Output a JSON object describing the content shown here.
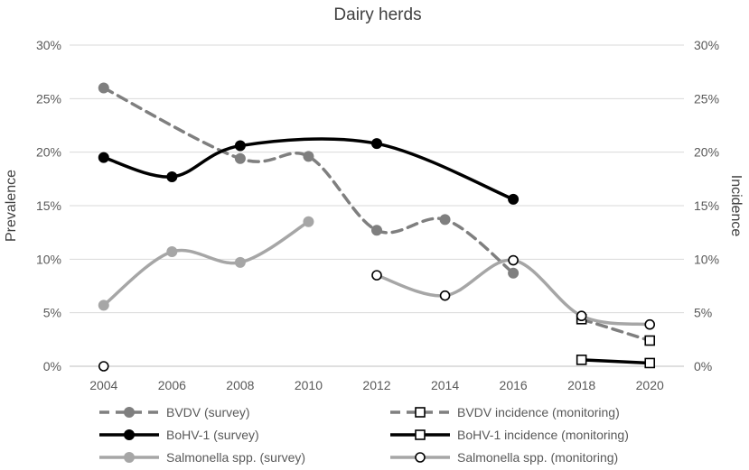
{
  "chart_data": {
    "type": "line",
    "title": "Dairy herds",
    "ylabel_left": "Prevalence",
    "ylabel_right": "Incidence",
    "x_ticks": [
      "2004",
      "2006",
      "2008",
      "2010",
      "2012",
      "2014",
      "2016",
      "2018",
      "2020"
    ],
    "y_ticks": [
      "0%",
      "5%",
      "10%",
      "15%",
      "20%",
      "25%",
      "30%"
    ],
    "ylim": [
      0,
      30
    ],
    "xlim": [
      2003,
      2021
    ],
    "grid": true,
    "legend_position": "bottom",
    "series": [
      {
        "name": "BVDV (survey)",
        "axis": "left",
        "color": "#7f7f7f",
        "dashed": true,
        "marker": "filled-circle",
        "points": [
          [
            2004,
            26.0
          ],
          [
            2008,
            19.4
          ],
          [
            2010,
            19.6
          ],
          [
            2012,
            12.7
          ],
          [
            2014,
            13.7
          ],
          [
            2016,
            8.7
          ]
        ]
      },
      {
        "name": "BVDV incidence (monitoring)",
        "axis": "right",
        "color": "#7f7f7f",
        "dashed": true,
        "marker": "open-square",
        "points": [
          [
            2018,
            4.4
          ],
          [
            2020,
            2.4
          ]
        ]
      },
      {
        "name": "BoHV-1 (survey)",
        "axis": "left",
        "color": "#000000",
        "dashed": false,
        "marker": "filled-circle",
        "points": [
          [
            2004,
            19.5
          ],
          [
            2006,
            17.7
          ],
          [
            2008,
            20.6
          ],
          [
            2012,
            20.8
          ],
          [
            2016,
            15.6
          ]
        ]
      },
      {
        "name": "BoHV-1 incidence (monitoring)",
        "axis": "right",
        "color": "#000000",
        "dashed": false,
        "marker": "open-square",
        "points": [
          [
            2018,
            0.6
          ],
          [
            2020,
            0.3
          ]
        ]
      },
      {
        "name": "Salmonella spp. (survey)",
        "axis": "left",
        "color": "#a6a6a6",
        "dashed": false,
        "marker": "filled-circle",
        "points": [
          [
            2004,
            5.7
          ],
          [
            2006,
            10.7
          ],
          [
            2008,
            9.7
          ],
          [
            2010,
            13.5
          ]
        ]
      },
      {
        "name": "Salmonella spp. (monitoring)",
        "axis": "right",
        "color": "#a6a6a6",
        "dashed": false,
        "marker": "open-circle",
        "points": [
          [
            2004,
            0.0
          ],
          [
            2012,
            8.5
          ],
          [
            2014,
            6.6
          ],
          [
            2016,
            9.9
          ],
          [
            2018,
            4.7
          ],
          [
            2020,
            3.9
          ]
        ],
        "segment_breaks_after": [
          2004
        ]
      }
    ]
  }
}
